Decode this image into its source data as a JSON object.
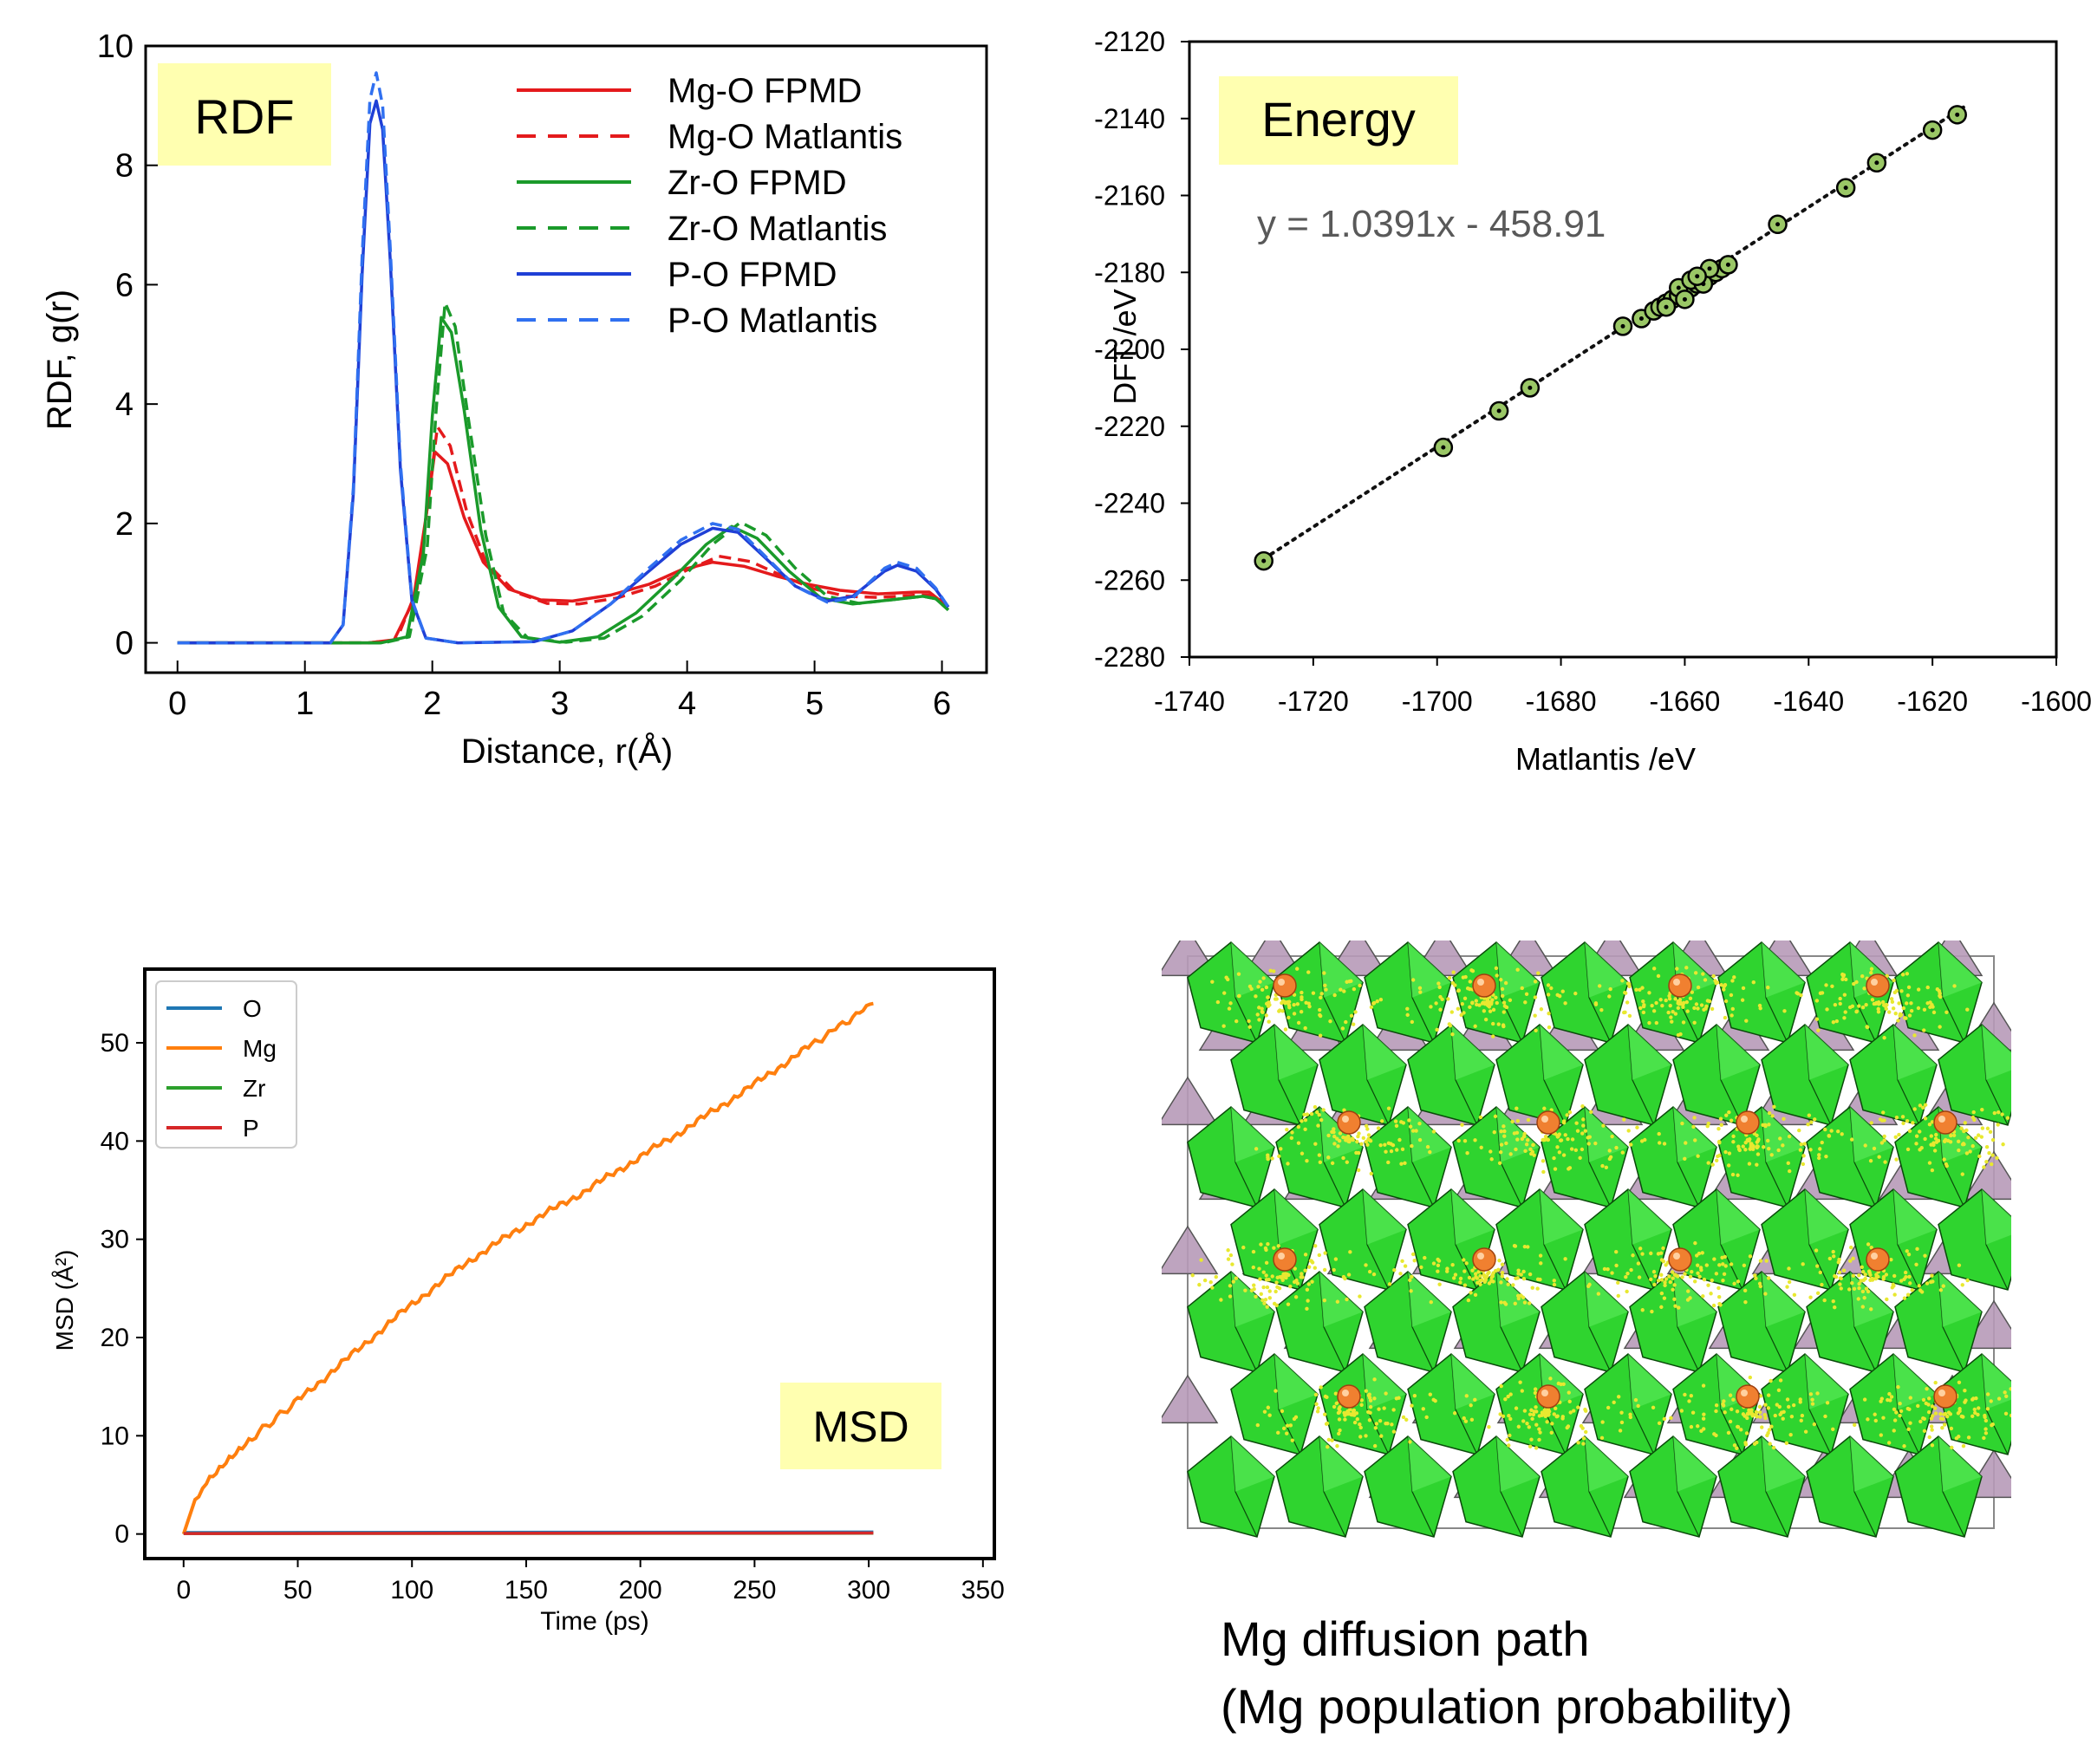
{
  "chart_data": [
    {
      "type": "line",
      "title": "RDF",
      "xlabel": "Distance, r(Å)",
      "ylabel": "RDF, g(r)",
      "xlim": [
        -0.25,
        6.35
      ],
      "ylim": [
        -0.5,
        10
      ],
      "xticks": [
        0,
        1,
        2,
        3,
        4,
        5,
        6
      ],
      "yticks": [
        0,
        2,
        4,
        6,
        8,
        10
      ],
      "grid": false,
      "legend": "top-right",
      "series": [
        {
          "name": "Mg-O  FPMD",
          "color": "#e41a1c",
          "dash": false,
          "points": [
            [
              0,
              0
            ],
            [
              1.5,
              0
            ],
            [
              1.7,
              0.05
            ],
            [
              1.85,
              0.7
            ],
            [
              1.95,
              2.1
            ],
            [
              2.02,
              3.2
            ],
            [
              2.12,
              3.0
            ],
            [
              2.25,
              2.1
            ],
            [
              2.4,
              1.35
            ],
            [
              2.6,
              0.9
            ],
            [
              2.85,
              0.72
            ],
            [
              3.1,
              0.7
            ],
            [
              3.4,
              0.8
            ],
            [
              3.7,
              0.98
            ],
            [
              3.95,
              1.22
            ],
            [
              4.2,
              1.35
            ],
            [
              4.45,
              1.28
            ],
            [
              4.7,
              1.12
            ],
            [
              4.95,
              0.98
            ],
            [
              5.2,
              0.88
            ],
            [
              5.5,
              0.82
            ],
            [
              5.8,
              0.85
            ],
            [
              5.9,
              0.85
            ],
            [
              6.05,
              0.6
            ]
          ]
        },
        {
          "name": "Mg-O  Matlantis",
          "color": "#e41a1c",
          "dash": true,
          "points": [
            [
              0,
              0
            ],
            [
              1.5,
              0
            ],
            [
              1.72,
              0.05
            ],
            [
              1.88,
              0.9
            ],
            [
              1.98,
              2.6
            ],
            [
              2.04,
              3.62
            ],
            [
              2.14,
              3.3
            ],
            [
              2.27,
              2.2
            ],
            [
              2.42,
              1.35
            ],
            [
              2.65,
              0.85
            ],
            [
              2.9,
              0.66
            ],
            [
              3.15,
              0.65
            ],
            [
              3.45,
              0.75
            ],
            [
              3.75,
              0.95
            ],
            [
              4.0,
              1.22
            ],
            [
              4.25,
              1.45
            ],
            [
              4.5,
              1.36
            ],
            [
              4.75,
              1.12
            ],
            [
              5.0,
              0.9
            ],
            [
              5.25,
              0.78
            ],
            [
              5.5,
              0.76
            ],
            [
              5.8,
              0.8
            ],
            [
              5.95,
              0.8
            ],
            [
              6.05,
              0.6
            ]
          ]
        },
        {
          "name": "Zr-O   FPMD",
          "color": "#1a9a2a",
          "dash": false,
          "points": [
            [
              0,
              0
            ],
            [
              1.6,
              0
            ],
            [
              1.8,
              0.1
            ],
            [
              1.93,
              1.5
            ],
            [
              2.0,
              3.8
            ],
            [
              2.07,
              5.45
            ],
            [
              2.15,
              5.2
            ],
            [
              2.25,
              3.9
            ],
            [
              2.38,
              1.9
            ],
            [
              2.52,
              0.6
            ],
            [
              2.7,
              0.1
            ],
            [
              3.0,
              0.01
            ],
            [
              3.3,
              0.1
            ],
            [
              3.6,
              0.5
            ],
            [
              3.9,
              1.1
            ],
            [
              4.15,
              1.65
            ],
            [
              4.35,
              1.95
            ],
            [
              4.55,
              1.75
            ],
            [
              4.8,
              1.2
            ],
            [
              5.05,
              0.75
            ],
            [
              5.3,
              0.65
            ],
            [
              5.6,
              0.72
            ],
            [
              5.85,
              0.78
            ],
            [
              5.95,
              0.74
            ],
            [
              6.05,
              0.55
            ]
          ]
        },
        {
          "name": "Zr-O   Matlantis",
          "color": "#1a9a2a",
          "dash": true,
          "points": [
            [
              0,
              0
            ],
            [
              1.62,
              0
            ],
            [
              1.82,
              0.1
            ],
            [
              1.96,
              1.6
            ],
            [
              2.03,
              3.9
            ],
            [
              2.1,
              5.7
            ],
            [
              2.18,
              5.3
            ],
            [
              2.28,
              3.8
            ],
            [
              2.42,
              1.8
            ],
            [
              2.56,
              0.5
            ],
            [
              2.75,
              0.08
            ],
            [
              3.05,
              0.01
            ],
            [
              3.35,
              0.08
            ],
            [
              3.65,
              0.45
            ],
            [
              3.95,
              1.05
            ],
            [
              4.2,
              1.65
            ],
            [
              4.42,
              2.02
            ],
            [
              4.62,
              1.8
            ],
            [
              4.85,
              1.25
            ],
            [
              5.1,
              0.78
            ],
            [
              5.35,
              0.66
            ],
            [
              5.6,
              0.72
            ],
            [
              5.85,
              0.78
            ],
            [
              5.95,
              0.74
            ],
            [
              6.05,
              0.55
            ]
          ]
        },
        {
          "name": "P-O  FPMD",
          "color": "#1f3fd6",
          "dash": false,
          "points": [
            [
              0,
              0
            ],
            [
              1.2,
              0
            ],
            [
              1.3,
              0.3
            ],
            [
              1.38,
              2.5
            ],
            [
              1.45,
              6.2
            ],
            [
              1.51,
              8.7
            ],
            [
              1.56,
              9.08
            ],
            [
              1.61,
              8.6
            ],
            [
              1.67,
              6.4
            ],
            [
              1.75,
              2.9
            ],
            [
              1.84,
              0.7
            ],
            [
              1.95,
              0.08
            ],
            [
              2.2,
              0
            ],
            [
              2.8,
              0.02
            ],
            [
              3.1,
              0.2
            ],
            [
              3.4,
              0.65
            ],
            [
              3.7,
              1.2
            ],
            [
              3.95,
              1.65
            ],
            [
              4.2,
              1.92
            ],
            [
              4.4,
              1.85
            ],
            [
              4.6,
              1.45
            ],
            [
              4.85,
              0.95
            ],
            [
              5.1,
              0.7
            ],
            [
              5.3,
              0.78
            ],
            [
              5.55,
              1.2
            ],
            [
              5.65,
              1.3
            ],
            [
              5.8,
              1.2
            ],
            [
              5.95,
              0.9
            ],
            [
              6.05,
              0.6
            ]
          ]
        },
        {
          "name": "P-O  Matlantis",
          "color": "#3070f0",
          "dash": true,
          "points": [
            [
              0,
              0
            ],
            [
              1.2,
              0
            ],
            [
              1.3,
              0.3
            ],
            [
              1.38,
              2.6
            ],
            [
              1.45,
              6.5
            ],
            [
              1.51,
              9.1
            ],
            [
              1.56,
              9.55
            ],
            [
              1.61,
              9.0
            ],
            [
              1.67,
              6.6
            ],
            [
              1.75,
              3.0
            ],
            [
              1.84,
              0.72
            ],
            [
              1.95,
              0.08
            ],
            [
              2.2,
              0
            ],
            [
              2.8,
              0.02
            ],
            [
              3.1,
              0.2
            ],
            [
              3.4,
              0.65
            ],
            [
              3.7,
              1.25
            ],
            [
              3.95,
              1.72
            ],
            [
              4.2,
              2.0
            ],
            [
              4.4,
              1.9
            ],
            [
              4.6,
              1.48
            ],
            [
              4.85,
              0.95
            ],
            [
              5.1,
              0.68
            ],
            [
              5.3,
              0.75
            ],
            [
              5.55,
              1.25
            ],
            [
              5.65,
              1.35
            ],
            [
              5.8,
              1.25
            ],
            [
              5.95,
              0.92
            ],
            [
              6.05,
              0.6
            ]
          ]
        }
      ]
    },
    {
      "type": "scatter",
      "title": "Energy",
      "annotation": "y = 1.0391x - 458.91",
      "xlabel": "Matlantis /eV",
      "ylabel": "DFT /eV",
      "xlim": [
        -1740,
        -1600
      ],
      "ylim": [
        -2280,
        -2120
      ],
      "xticks": [
        -1740,
        -1720,
        -1700,
        -1680,
        -1660,
        -1640,
        -1620,
        -1600
      ],
      "yticks": [
        -2280,
        -2260,
        -2240,
        -2220,
        -2200,
        -2180,
        -2160,
        -2140,
        -2120
      ],
      "grid": false,
      "fit": {
        "slope": 1.0391,
        "intercept": -458.91,
        "x_range": [
          -1728,
          -1615
        ]
      },
      "marker_color": "#9ac766",
      "points": [
        [
          -1728,
          -2255
        ],
        [
          -1699,
          -2225.5
        ],
        [
          -1690,
          -2216
        ],
        [
          -1685,
          -2210
        ],
        [
          -1670,
          -2194
        ],
        [
          -1667,
          -2192
        ],
        [
          -1665,
          -2190
        ],
        [
          -1664,
          -2189
        ],
        [
          -1663,
          -2188
        ],
        [
          -1662,
          -2187
        ],
        [
          -1661,
          -2186
        ],
        [
          -1660,
          -2185
        ],
        [
          -1659,
          -2184
        ],
        [
          -1658,
          -2183
        ],
        [
          -1657,
          -2182
        ],
        [
          -1656,
          -2181
        ],
        [
          -1655,
          -2180
        ],
        [
          -1654,
          -2179
        ],
        [
          -1653,
          -2178
        ],
        [
          -1663,
          -2189
        ],
        [
          -1661,
          -2184
        ],
        [
          -1659,
          -2182
        ],
        [
          -1657,
          -2183
        ],
        [
          -1656,
          -2179
        ],
        [
          -1660,
          -2187
        ],
        [
          -1658,
          -2181
        ],
        [
          -1645,
          -2167.5
        ],
        [
          -1634,
          -2158
        ],
        [
          -1629,
          -2151.5
        ],
        [
          -1620,
          -2143
        ],
        [
          -1616,
          -2139
        ]
      ]
    },
    {
      "type": "line",
      "title": "MSD",
      "xlabel": "Time (ps)",
      "ylabel": "MSD (Å²)",
      "xlim": [
        -17,
        355
      ],
      "ylim": [
        -2.5,
        57.5
      ],
      "xticks": [
        0,
        50,
        100,
        150,
        200,
        250,
        300,
        350
      ],
      "yticks": [
        0,
        10,
        20,
        30,
        40,
        50
      ],
      "grid": false,
      "legend": "top-left",
      "series": [
        {
          "name": "O",
          "color": "#1f77b4",
          "points": [
            [
              0,
              0.15
            ],
            [
              302,
              0.2
            ]
          ]
        },
        {
          "name": "Mg",
          "color": "#ff7f0e",
          "points": [
            [
              0,
              0
            ],
            [
              5,
              3.5
            ],
            [
              10,
              5.4
            ],
            [
              20,
              7.8
            ],
            [
              30,
              9.8
            ],
            [
              50,
              13.6
            ],
            [
              75,
              18.5
            ],
            [
              100,
              23.4
            ],
            [
              125,
              27.8
            ],
            [
              150,
              31.5
            ],
            [
              175,
              34.8
            ],
            [
              200,
              38.4
            ],
            [
              225,
              42.0
            ],
            [
              250,
              45.8
            ],
            [
              275,
              49.8
            ],
            [
              302,
              54.0
            ]
          ]
        },
        {
          "name": "Zr",
          "color": "#2ca02c",
          "points": [
            [
              0,
              0.05
            ],
            [
              302,
              0.08
            ]
          ]
        },
        {
          "name": "P",
          "color": "#d62728",
          "points": [
            [
              0,
              0.05
            ],
            [
              302,
              0.1
            ]
          ]
        }
      ]
    }
  ],
  "structure": {
    "caption_line1": "Mg diffusion path",
    "caption_line2": " (Mg population probability)",
    "colors": {
      "zr_polyhedra": "#2fd42f",
      "p_tetrahedra": "#b79ab8",
      "mg_atom": "#f08030",
      "mg_cloud": "#e8e830"
    }
  }
}
